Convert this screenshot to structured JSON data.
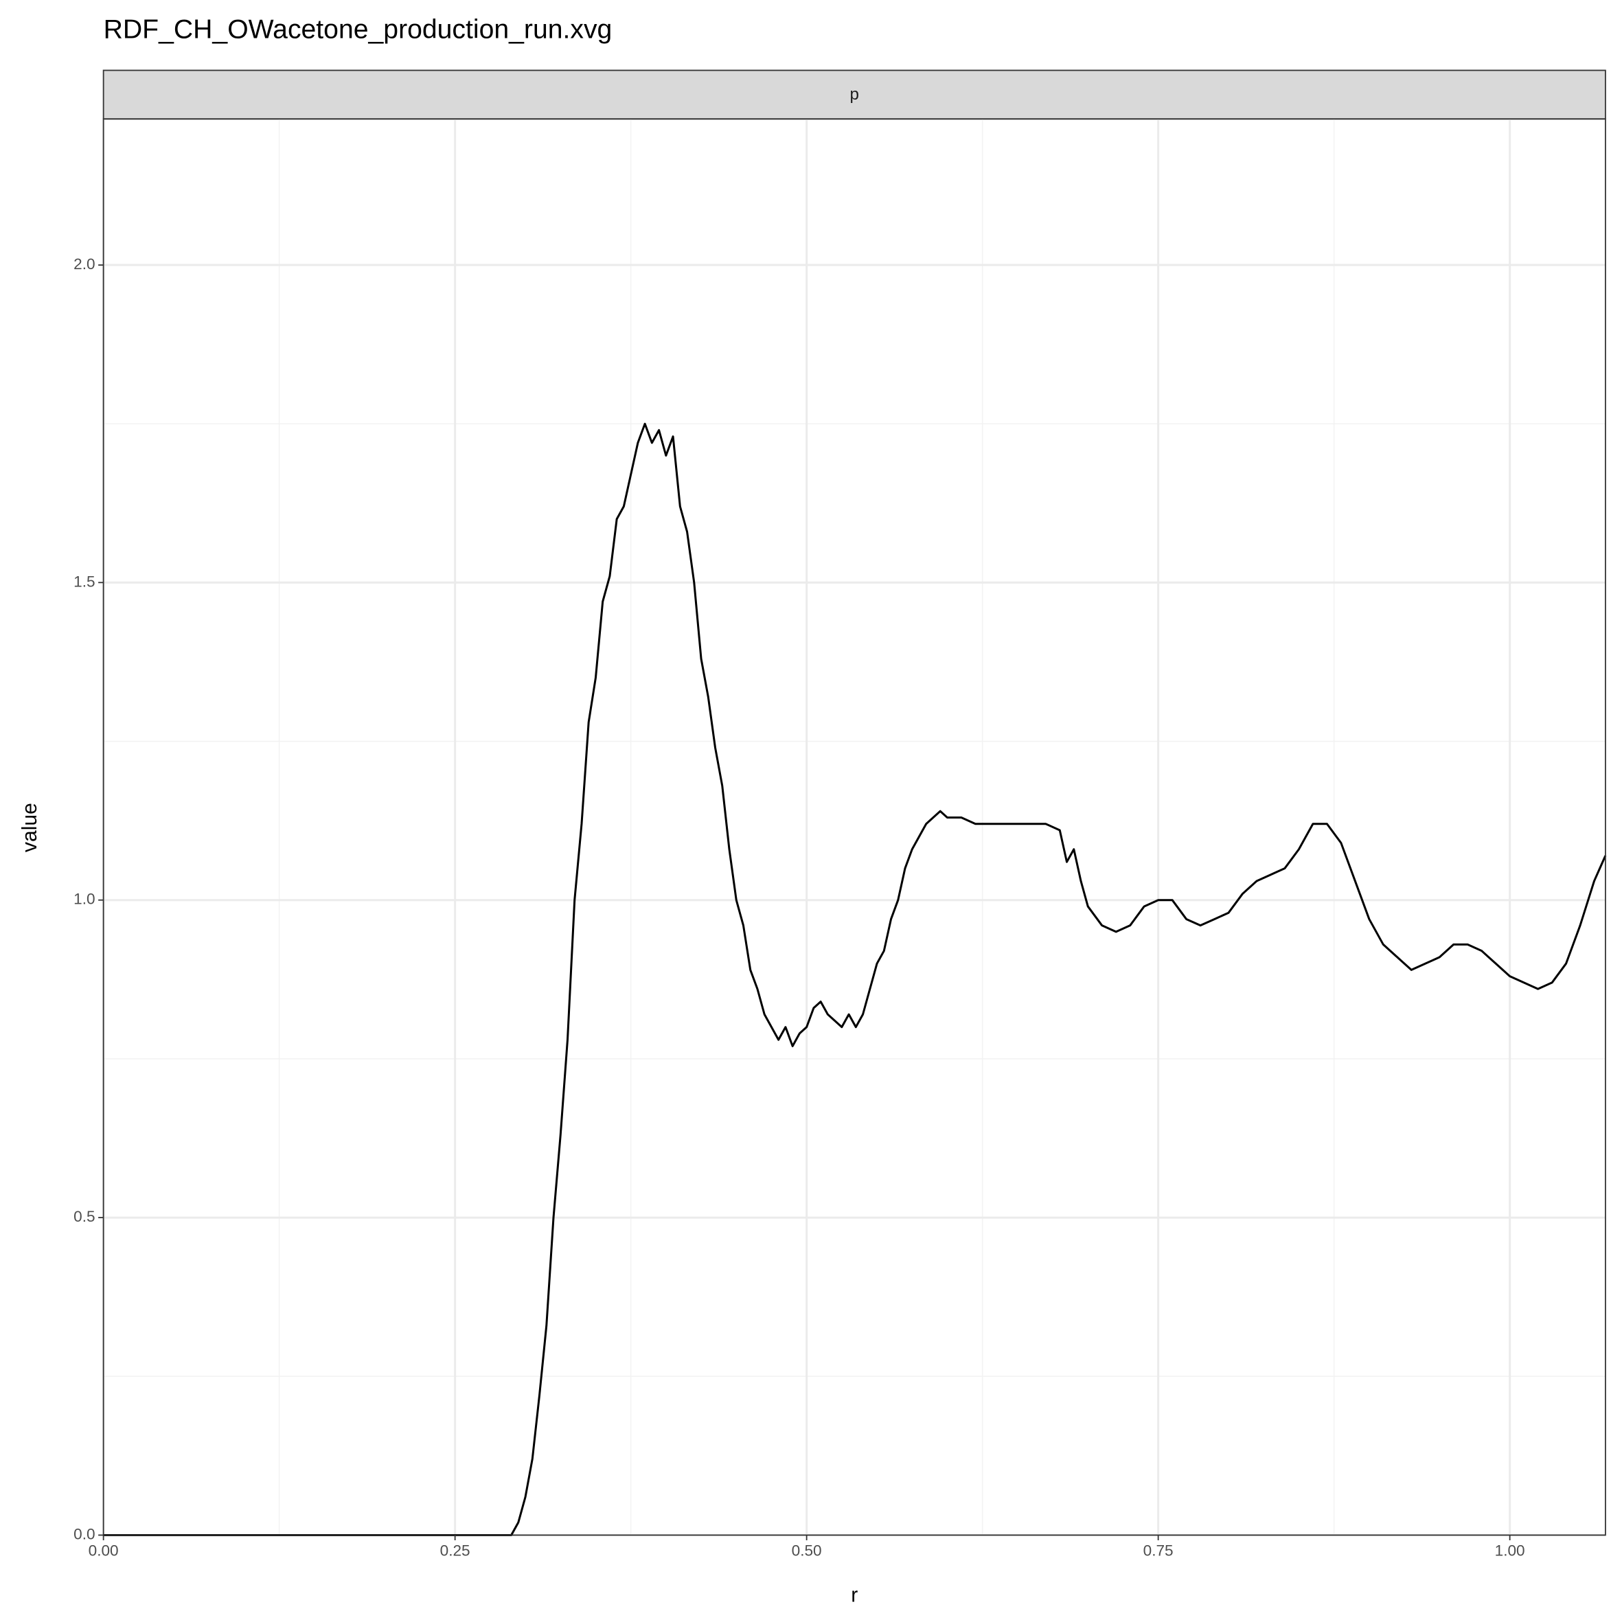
{
  "chart_data": {
    "type": "line",
    "title": "RDF_CH_OWacetone_production_run.xvg",
    "facet_label": "p",
    "x_label": "r",
    "y_label": "value",
    "xlim": [
      0,
      1.068
    ],
    "ylim": [
      0,
      2.23
    ],
    "xticks": [
      {
        "value": 0,
        "label": "0.00"
      },
      {
        "value": 0.25,
        "label": "0.25"
      },
      {
        "value": 0.5,
        "label": "0.50"
      },
      {
        "value": 0.75,
        "label": "0.75"
      },
      {
        "value": 1,
        "label": "1.00"
      }
    ],
    "yticks": [
      {
        "value": 0,
        "label": "0.0"
      },
      {
        "value": 0.5,
        "label": "0.5"
      },
      {
        "value": 1,
        "label": "1.0"
      },
      {
        "value": 1.5,
        "label": "1.5"
      },
      {
        "value": 2,
        "label": "2.0"
      }
    ],
    "grid": true,
    "series": [
      {
        "color": "#000000",
        "x": [
          0,
          0.28,
          0.29,
          0.295,
          0.3,
          0.305,
          0.31,
          0.315,
          0.32,
          0.325,
          0.33,
          0.335,
          0.34,
          0.345,
          0.35,
          0.355,
          0.36,
          0.365,
          0.37,
          0.375,
          0.38,
          0.385,
          0.39,
          0.395,
          0.4,
          0.405,
          0.41,
          0.415,
          0.42,
          0.425,
          0.43,
          0.435,
          0.44,
          0.445,
          0.45,
          0.455,
          0.46,
          0.465,
          0.47,
          0.475,
          0.48,
          0.485,
          0.49,
          0.495,
          0.5,
          0.505,
          0.51,
          0.515,
          0.52,
          0.525,
          0.53,
          0.535,
          0.54,
          0.545,
          0.55,
          0.555,
          0.56,
          0.565,
          0.57,
          0.575,
          0.58,
          0.585,
          0.59,
          0.595,
          0.6,
          0.61,
          0.62,
          0.63,
          0.64,
          0.65,
          0.66,
          0.67,
          0.68,
          0.685,
          0.69,
          0.695,
          0.7,
          0.71,
          0.72,
          0.73,
          0.74,
          0.75,
          0.76,
          0.77,
          0.78,
          0.79,
          0.8,
          0.81,
          0.82,
          0.83,
          0.84,
          0.85,
          0.86,
          0.87,
          0.88,
          0.89,
          0.9,
          0.91,
          0.92,
          0.93,
          0.94,
          0.95,
          0.96,
          0.97,
          0.98,
          0.99,
          1,
          1.01,
          1.02,
          1.03,
          1.04,
          1.05,
          1.06,
          1.068
        ],
        "values": [
          0,
          0,
          0,
          0.02,
          0.06,
          0.12,
          0.22,
          0.33,
          0.5,
          0.63,
          0.78,
          1.0,
          1.12,
          1.28,
          1.35,
          1.47,
          1.51,
          1.6,
          1.62,
          1.67,
          1.72,
          1.75,
          1.72,
          1.74,
          1.7,
          1.73,
          1.62,
          1.58,
          1.5,
          1.38,
          1.32,
          1.24,
          1.18,
          1.08,
          1.0,
          0.96,
          0.89,
          0.86,
          0.82,
          0.8,
          0.78,
          0.8,
          0.77,
          0.79,
          0.8,
          0.83,
          0.84,
          0.82,
          0.81,
          0.8,
          0.82,
          0.8,
          0.82,
          0.86,
          0.9,
          0.92,
          0.97,
          1.0,
          1.05,
          1.08,
          1.1,
          1.12,
          1.13,
          1.14,
          1.13,
          1.13,
          1.12,
          1.12,
          1.12,
          1.12,
          1.12,
          1.12,
          1.11,
          1.06,
          1.08,
          1.03,
          0.99,
          0.96,
          0.95,
          0.96,
          0.99,
          1.0,
          1.0,
          0.97,
          0.96,
          0.97,
          0.98,
          1.01,
          1.03,
          1.04,
          1.05,
          1.08,
          1.12,
          1.12,
          1.09,
          1.03,
          0.97,
          0.93,
          0.91,
          0.89,
          0.9,
          0.91,
          0.93,
          0.93,
          0.92,
          0.9,
          0.88,
          0.87,
          0.86,
          0.87,
          0.9,
          0.96,
          1.03,
          1.07
        ]
      }
    ]
  }
}
